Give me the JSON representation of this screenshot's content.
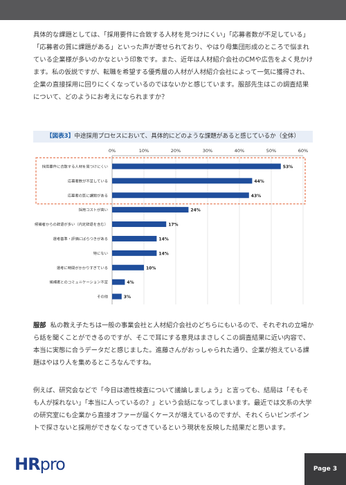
{
  "paragraphs": {
    "p1": "具体的な課題としては、「採用要件に合致する人材を見つけにくい」「応募者数が不足している」「応募者の質に課題がある」といった声が寄せられており、やはり母集団形成のところで悩まれている企業様が多いのかなという印象です。また、近年は人材紹介会社のCMや広告をよく見かけます。私の仮説ですが、転職を希望する優秀層の人材が人材紹介会社によって一気に獲得され、企業の直接採用に回りにくくなっているのではないかと感じています。服部先生はこの調査結果について、どのようにお考えになられますか？",
    "p2_speaker": "服部",
    "p2": "私の教え子たちは一般の事業会社と人材紹介会社のどちらにもいるので、それぞれの立場から話を聞くことができるのですが、そこで耳にする意見はまさしくこの調査結果に近い内容で、本当に実態に合うデータだと感じました。進藤さんがおっしゃられた通り、企業が抱えている課題はやはり人を集めるところなんですね。",
    "p3": "例えば、研究会などで「今日は適性検査について議論しましょう」と言っても、結局は「そもそも人が採れない」「本当に人っているの？」という会話になってしまいます。最近では文系の大学の研究室にも企業から直接オファーが届くケースが増えているのですが、それくらいピンポイントで探さないと採用ができなくなってきているという現状を反映した結果だと思います。"
  },
  "figure": {
    "tag": "【図表3】",
    "title": "中途採用プロセスにおいて、具体的にどのような課題があると感じているか（全体）"
  },
  "chart_data": {
    "type": "bar",
    "orientation": "horizontal",
    "title": "【図表3】中途採用プロセスにおいて、具体的にどのような課題があると感じているか（全体）",
    "categories": [
      "採用要件に合致する人材を見つけにくい",
      "応募者数が不足している",
      "応募者の質に課題がある",
      "採用コストが高い",
      "候補者からの辞退が多い（内定辞退を含む）",
      "選考基準・評価にばらつきがある",
      "特にない",
      "選考に時間がかかりすぎている",
      "候補者とのコミュニケーション不足",
      "その他"
    ],
    "values": [
      53,
      44,
      43,
      24,
      17,
      14,
      14,
      10,
      4,
      3
    ],
    "value_labels": [
      "53%",
      "44%",
      "43%",
      "24%",
      "17%",
      "14%",
      "14%",
      "10%",
      "4%",
      "3%"
    ],
    "x_ticks": [
      "0%",
      "10%",
      "20%",
      "30%",
      "40%",
      "50%",
      "60%"
    ],
    "xlim": [
      0,
      60
    ],
    "highlight_top_n": 3,
    "bar_color": "#1f4e9c",
    "highlight_color": "#e05a2b",
    "grid": true
  },
  "footer": {
    "logo_hr": "HR",
    "logo_pro": "pro",
    "page_label": "Page 3"
  }
}
